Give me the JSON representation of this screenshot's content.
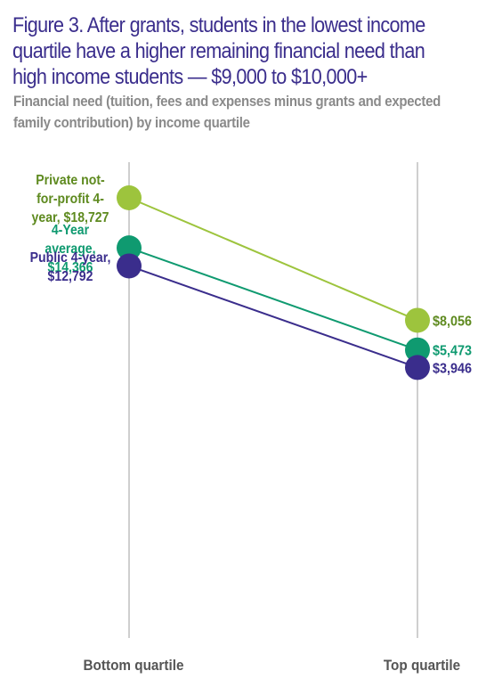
{
  "header": {
    "title": "Figure 3. After grants, students in the lowest income quartile have a higher remaining financial need than high income students — $9,000 to $10,000+",
    "subtitle": "Financial need (tuition, fees and expenses minus grants and expected family contribution) by income quartile"
  },
  "chart_data": {
    "type": "line",
    "categories": [
      "Bottom quartile",
      "Top quartile"
    ],
    "series": [
      {
        "name": "Private not-for-profit 4-year",
        "values": [
          18727,
          8056
        ],
        "start_label": [
          "Private not-",
          "for-profit 4-",
          "year, $18,727"
        ],
        "end_label": "$8,056",
        "color": "#9dc43d",
        "label_color": "#5e8a1f"
      },
      {
        "name": "4-Year average",
        "values": [
          14366,
          5473
        ],
        "start_label": [
          "4-Year",
          "average,",
          "$14,366"
        ],
        "end_label": "$5,473",
        "color": "#0f9a70",
        "label_color": "#0f9a70"
      },
      {
        "name": "Public 4-year",
        "values": [
          12792,
          3946
        ],
        "start_label": [
          "Public 4-year,",
          "$12,792"
        ],
        "end_label": "$3,946",
        "color": "#3a2d8c",
        "label_color": "#3a2d8c"
      }
    ],
    "axis_color": "#cfcfcf",
    "category_label_color": "#555555"
  }
}
